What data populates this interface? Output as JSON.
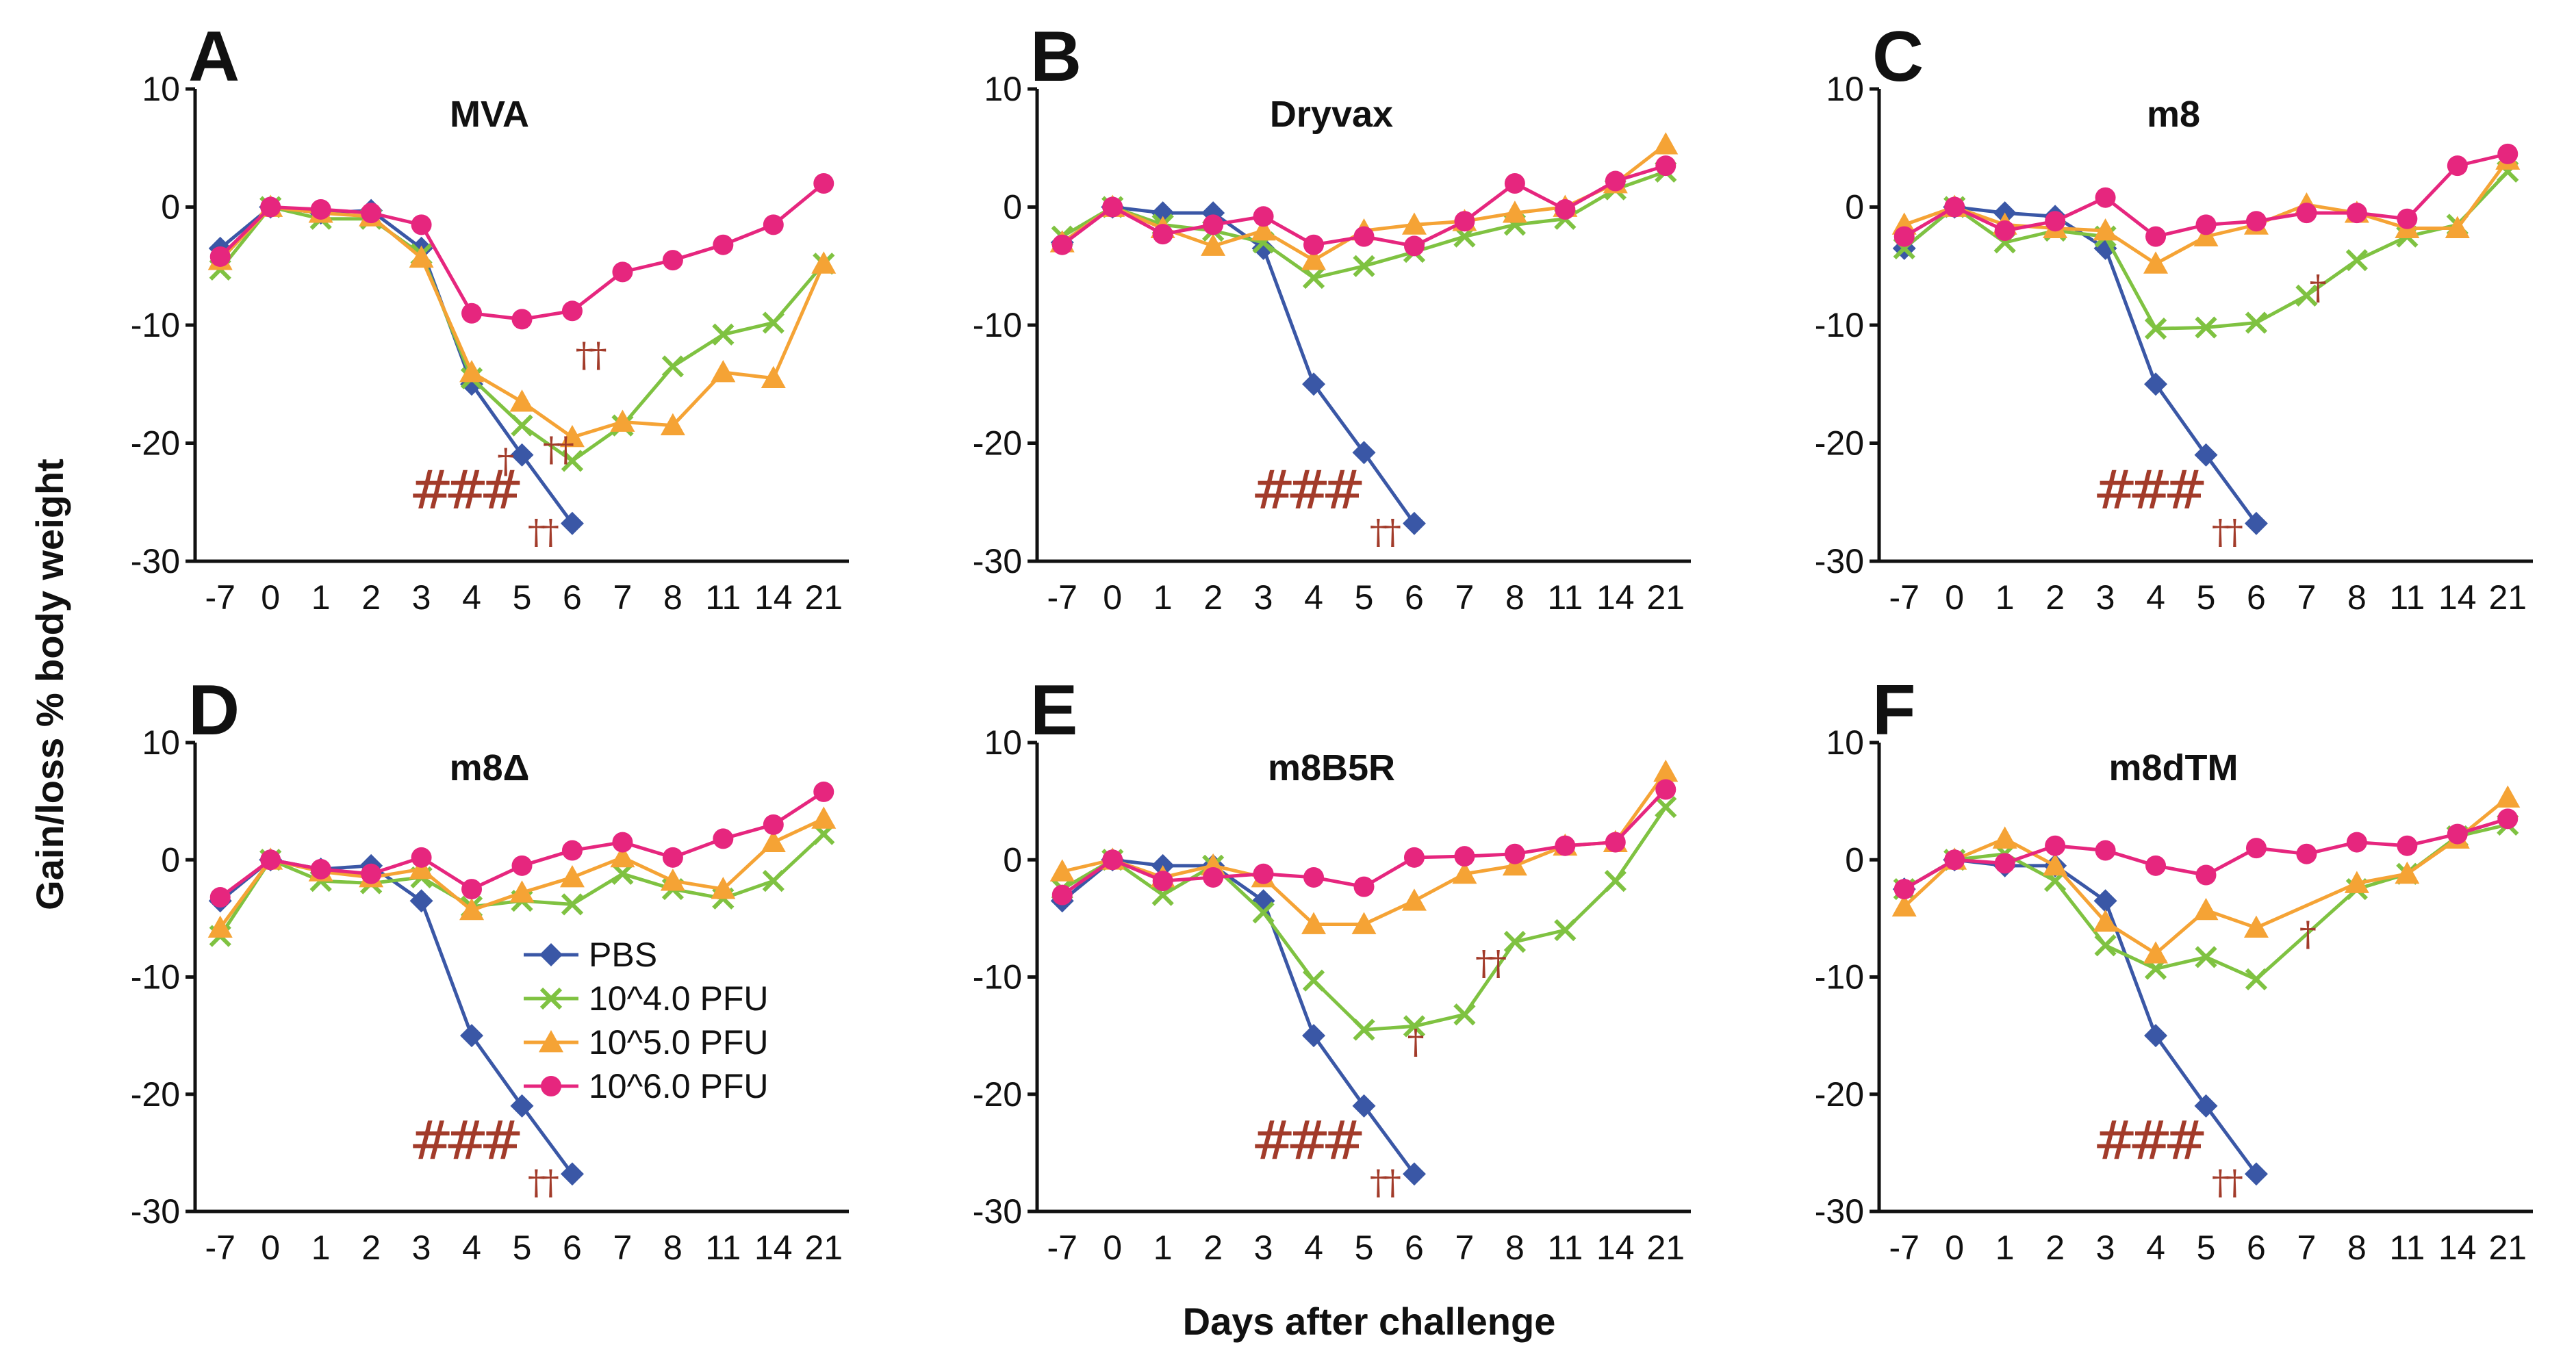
{
  "chart_data": {
    "type": "line",
    "x_categories": [
      "-7",
      "0",
      "1",
      "2",
      "3",
      "4",
      "5",
      "6",
      "7",
      "8",
      "11",
      "14",
      "21"
    ],
    "xlabel": "Days after challenge",
    "ylabel": "Gain/loss % body weight",
    "ylim": [
      -30,
      10
    ],
    "yticks": [
      "10",
      "0",
      "-10",
      "-20",
      "-30"
    ],
    "series_meta": [
      {
        "name": "PBS",
        "color": "#3a57a6",
        "marker": "diamond"
      },
      {
        "name": "10^4.0 PFU",
        "color": "#7fc241",
        "marker": "x"
      },
      {
        "name": "10^5.0 PFU",
        "color": "#f5a335",
        "marker": "triangle"
      },
      {
        "name": "10^6.0 PFU",
        "color": "#e6267e",
        "marker": "circle"
      }
    ],
    "legend": {
      "panel": "D",
      "placement": "center-right",
      "labels": [
        "PBS",
        "10^4.0 PFU",
        "10^5.0 PFU",
        "10^6.0 PFU"
      ]
    },
    "panels": [
      {
        "letter": "A",
        "title": "MVA",
        "series": [
          {
            "name": "PBS",
            "values": [
              -3.5,
              0,
              -0.5,
              -0.3,
              -3.5,
              -15,
              -21,
              -26.8,
              null,
              null,
              null,
              null,
              null
            ]
          },
          {
            "name": "10^4.0 PFU",
            "values": [
              -5.3,
              0,
              -1,
              -1,
              -4,
              -14.5,
              -18.5,
              -21.5,
              -18.5,
              -13.5,
              -10.8,
              -9.8,
              -4.8
            ]
          },
          {
            "name": "10^5.0 PFU",
            "values": [
              -4.5,
              0,
              -0.5,
              -0.8,
              -4.3,
              -14,
              -16.5,
              -19.5,
              -18.2,
              -18.5,
              -14,
              -14.5,
              -4.8
            ]
          },
          {
            "name": "10^6.0 PFU",
            "values": [
              -4.2,
              0,
              -0.2,
              -0.5,
              -1.5,
              -9,
              -9.5,
              -8.8,
              -5.5,
              -4.5,
              -3.2,
              -1.5,
              2
            ]
          }
        ],
        "annotations": [
          {
            "text": "††",
            "x": 7.35,
            "y": -13.5
          },
          {
            "text": "†",
            "x": 5.65,
            "y": -22.5
          },
          {
            "text": "††",
            "x": 6.7,
            "y": -21.5
          },
          {
            "text": "###",
            "x": 4.8,
            "y": -25.5
          },
          {
            "text": "††",
            "x": 6.4,
            "y": -28.5
          }
        ]
      },
      {
        "letter": "B",
        "title": "Dryvax",
        "series": [
          {
            "name": "PBS",
            "values": [
              -3,
              0,
              -0.5,
              -0.5,
              -3.5,
              -15,
              -20.8,
              -26.8,
              null,
              null,
              null,
              null,
              null
            ]
          },
          {
            "name": "10^4.0 PFU",
            "values": [
              -2.5,
              0,
              -1.5,
              -2,
              -3,
              -6,
              -5,
              -3.8,
              -2.5,
              -1.5,
              -1,
              1.5,
              3
            ]
          },
          {
            "name": "10^5.0 PFU",
            "values": [
              -3,
              0,
              -1.8,
              -3.3,
              -2,
              -4.5,
              -2,
              -1.5,
              -1.2,
              -0.5,
              0,
              2,
              5.3
            ]
          },
          {
            "name": "10^6.0 PFU",
            "values": [
              -3.2,
              0,
              -2.3,
              -1.5,
              -0.8,
              -3.2,
              -2.5,
              -3.3,
              -1.2,
              2,
              -0.2,
              2.2,
              3.5
            ]
          }
        ],
        "annotations": [
          {
            "text": "###",
            "x": 4.8,
            "y": -25.5
          },
          {
            "text": "††",
            "x": 6.4,
            "y": -28.5
          }
        ]
      },
      {
        "letter": "C",
        "title": "m8",
        "series": [
          {
            "name": "PBS",
            "values": [
              -3.5,
              0,
              -0.5,
              -0.8,
              -3.5,
              -15,
              -21,
              -26.8,
              null,
              null,
              null,
              null,
              null
            ]
          },
          {
            "name": "10^4.0 PFU",
            "values": [
              -3.5,
              0,
              -3,
              -2,
              -2.5,
              -10.3,
              -10.2,
              -9.8,
              -7.5,
              -4.5,
              -2.5,
              -1.5,
              3
            ]
          },
          {
            "name": "10^5.0 PFU",
            "values": [
              -1.5,
              0,
              -1.5,
              -1.8,
              -2,
              -4.8,
              -2.5,
              -1.5,
              0.2,
              -0.5,
              -1.8,
              -1.8,
              4
            ]
          },
          {
            "name": "10^6.0 PFU",
            "values": [
              -2.5,
              0,
              -2,
              -1.2,
              0.8,
              -2.5,
              -1.5,
              -1.2,
              -0.5,
              -0.5,
              -1,
              3.5,
              4.5
            ]
          }
        ],
        "annotations": [
          {
            "text": "†",
            "x": 8.2,
            "y": -7.8
          },
          {
            "text": "###",
            "x": 4.8,
            "y": -25.5
          },
          {
            "text": "††",
            "x": 6.4,
            "y": -28.5
          }
        ]
      },
      {
        "letter": "D",
        "title": "m8Δ",
        "series": [
          {
            "name": "PBS",
            "values": [
              -3.5,
              0,
              -0.8,
              -0.5,
              -3.5,
              -15,
              -21,
              -26.8,
              null,
              null,
              null,
              null,
              null
            ]
          },
          {
            "name": "10^4.0 PFU",
            "values": [
              -6.5,
              0,
              -1.8,
              -2,
              -1.5,
              -4,
              -3.5,
              -3.8,
              -1.2,
              -2.5,
              -3.3,
              -1.8,
              2.2
            ]
          },
          {
            "name": "10^5.0 PFU",
            "values": [
              -5.8,
              0,
              -1,
              -1.5,
              -0.8,
              -4.3,
              -2.8,
              -1.5,
              0.2,
              -1.8,
              -2.5,
              1.5,
              3.5
            ]
          },
          {
            "name": "10^6.0 PFU",
            "values": [
              -3.2,
              0,
              -0.8,
              -1.2,
              0.2,
              -2.5,
              -0.5,
              0.8,
              1.5,
              0.2,
              1.8,
              3,
              5.8
            ]
          }
        ],
        "annotations": [
          {
            "text": "###",
            "x": 4.8,
            "y": -25.5
          },
          {
            "text": "††",
            "x": 6.4,
            "y": -28.5
          }
        ]
      },
      {
        "letter": "E",
        "title": "m8B5R",
        "series": [
          {
            "name": "PBS",
            "values": [
              -3.5,
              0,
              -0.5,
              -0.5,
              -3.5,
              -15,
              -21,
              -26.8,
              null,
              null,
              null,
              null,
              null
            ]
          },
          {
            "name": "10^4.0 PFU",
            "values": [
              -2.5,
              0,
              -3,
              -0.5,
              -4.5,
              -10.3,
              -14.5,
              -14.2,
              -13.2,
              -7,
              -6,
              -1.8,
              4.5
            ]
          },
          {
            "name": "10^5.0 PFU",
            "values": [
              -1,
              0,
              -1.5,
              -0.5,
              -1.5,
              -5.5,
              -5.5,
              -3.5,
              -1.2,
              -0.5,
              1.2,
              1.5,
              7.5
            ]
          },
          {
            "name": "10^6.0 PFU",
            "values": [
              -3,
              0,
              -1.8,
              -1.5,
              -1.2,
              -1.5,
              -2.3,
              0.2,
              0.3,
              0.5,
              1.2,
              1.5,
              6
            ]
          }
        ],
        "annotations": [
          {
            "text": "††",
            "x": 8.5,
            "y": -9.8
          },
          {
            "text": "†",
            "x": 7.0,
            "y": -16.5
          },
          {
            "text": "###",
            "x": 4.8,
            "y": -25.5
          },
          {
            "text": "††",
            "x": 6.4,
            "y": -28.5
          }
        ]
      },
      {
        "letter": "F",
        "title": "m8dTM",
        "series": [
          {
            "name": "PBS",
            "values": [
              -2.5,
              0,
              -0.5,
              -0.5,
              -3.5,
              -15,
              -21,
              -26.8,
              null,
              null,
              null,
              null,
              null
            ]
          },
          {
            "name": "10^4.0 PFU",
            "values": [
              -2.5,
              0,
              0.5,
              -1.8,
              -7.3,
              -9.3,
              -8.3,
              -10.2,
              null,
              -2.5,
              -1.2,
              2,
              3
            ]
          },
          {
            "name": "10^5.0 PFU",
            "values": [
              -4,
              0,
              1.8,
              -0.5,
              -5.3,
              -8,
              -4.3,
              -5.8,
              null,
              -2,
              -1.2,
              1.8,
              5.3
            ]
          },
          {
            "name": "10^6.0 PFU",
            "values": [
              -2.5,
              0,
              -0.3,
              1.2,
              0.8,
              -0.5,
              -1.3,
              1,
              0.5,
              1.5,
              1.2,
              2.2,
              3.5
            ]
          }
        ],
        "annotations": [
          {
            "text": "†",
            "x": 8.0,
            "y": -7.3
          },
          {
            "text": "###",
            "x": 4.8,
            "y": -25.5
          },
          {
            "text": "††",
            "x": 6.4,
            "y": -28.5
          }
        ]
      }
    ]
  }
}
